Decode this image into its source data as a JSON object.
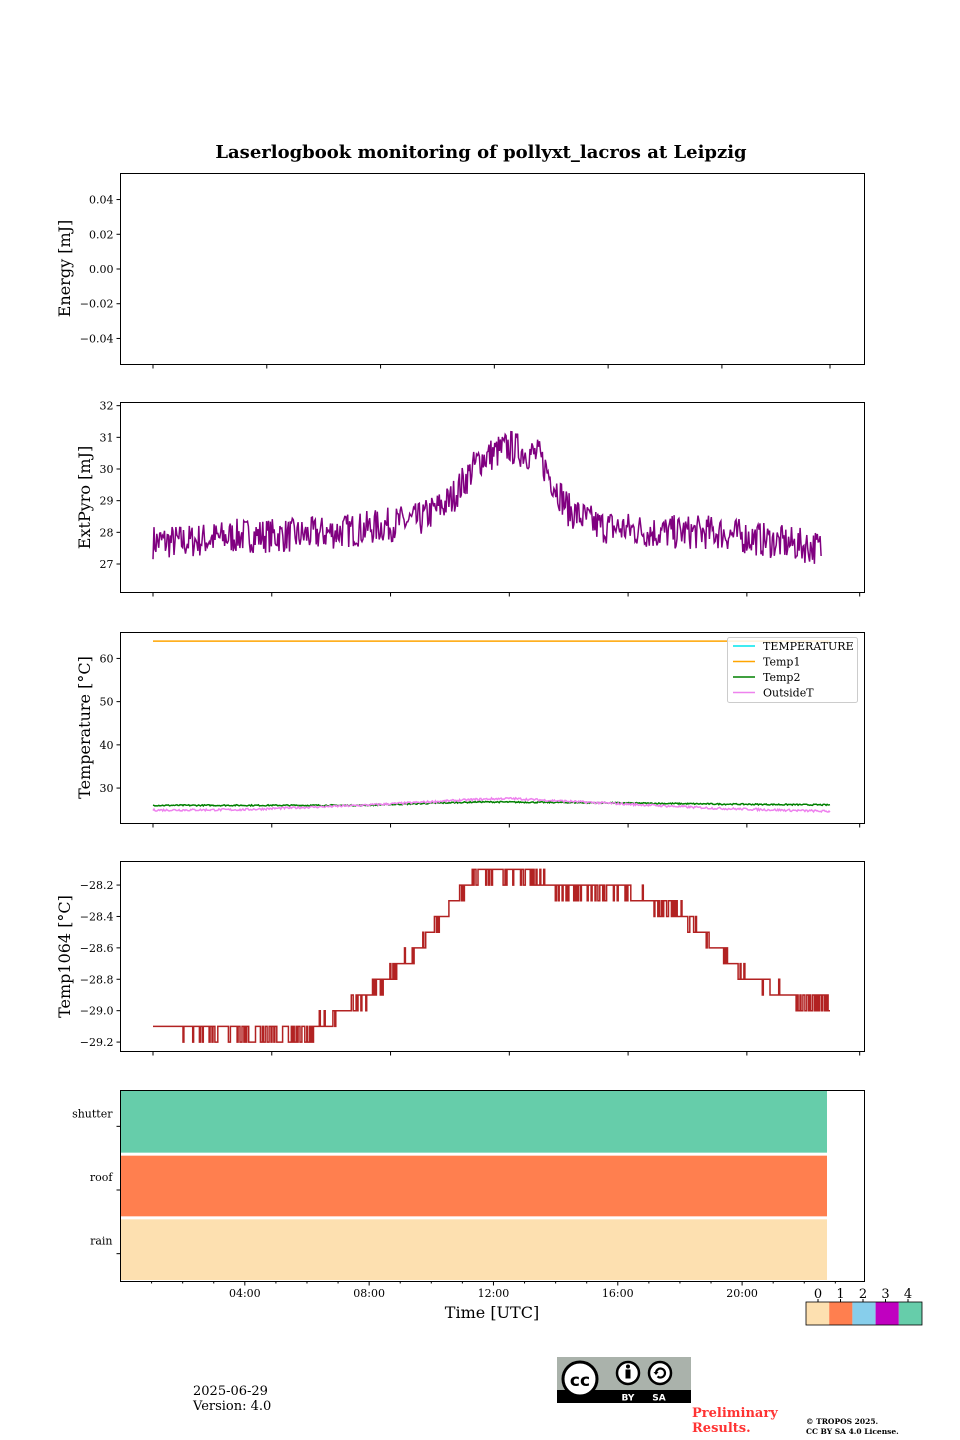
{
  "title": "Laserlogbook monitoring of pollyxt_lacros at Leipzig",
  "xlabel": "Time [UTC]",
  "x_ticks": [
    "04:00",
    "08:00",
    "12:00",
    "16:00",
    "20:00"
  ],
  "footer": {
    "date": "2025-06-29",
    "version": "Version: 4.0",
    "prelim_line1": "Preliminary",
    "prelim_line2": "Results.",
    "copyright_line1": "© TROPOS 2025.",
    "copyright_line2": "CC BY SA 4.0 License.",
    "license_badge_by": "BY",
    "license_badge_sa": "SA"
  },
  "chart_data": [
    {
      "type": "line",
      "ylabel": "Energy [mJ]",
      "ylim": [
        -0.055,
        0.055
      ],
      "yticks": [
        0.04,
        0.02,
        0.0,
        -0.02,
        -0.04
      ],
      "ytick_labels": [
        "0.04",
        "0.02",
        "0.00",
        "−0.02",
        "−0.04"
      ],
      "series": []
    },
    {
      "type": "line",
      "ylabel": "ExtPyro [mJ]",
      "ylim": [
        26.1,
        32.1
      ],
      "yticks": [
        32,
        31,
        30,
        29,
        28,
        27
      ],
      "ytick_labels": [
        "32",
        "31",
        "30",
        "29",
        "28",
        "27"
      ],
      "x_range_hours": [
        0,
        24
      ],
      "series": [
        {
          "color": "#800080",
          "noise": 0.55,
          "x": [
            1,
            2,
            4,
            6,
            8,
            10,
            11,
            12,
            13,
            14,
            15,
            16,
            18,
            20,
            22,
            23.5
          ],
          "y": [
            27.7,
            27.7,
            27.9,
            27.9,
            28.1,
            28.4,
            29.0,
            30.3,
            30.7,
            30.4,
            28.7,
            28.2,
            28.0,
            28.0,
            27.7,
            27.5
          ]
        }
      ]
    },
    {
      "type": "line",
      "ylabel": "Temperature [°C]",
      "ylim": [
        21.8,
        66
      ],
      "yticks": [
        60,
        50,
        40,
        30
      ],
      "ytick_labels": [
        "60",
        "50",
        "40",
        "30"
      ],
      "legend": "top-right",
      "x_range_hours": [
        0,
        24
      ],
      "series": [
        {
          "name": "TEMPERATURE",
          "color": "#00e5ee",
          "x": [],
          "y": []
        },
        {
          "name": "Temp1",
          "color": "#ffa500",
          "x": [
            1,
            23.8
          ],
          "y": [
            64,
            64
          ]
        },
        {
          "name": "Temp2",
          "color": "#008000",
          "noise": 0.15,
          "x": [
            1,
            4,
            8,
            12,
            16,
            20,
            23.8
          ],
          "y": [
            26.0,
            26.0,
            26.0,
            26.8,
            26.6,
            26.3,
            26.1
          ]
        },
        {
          "name": "OutsideT",
          "color": "#ee82ee",
          "noise": 0.25,
          "x": [
            1,
            4,
            8,
            12,
            13,
            16,
            20,
            23.8
          ],
          "y": [
            24.9,
            25.0,
            26.0,
            27.4,
            27.6,
            26.6,
            25.3,
            24.6
          ]
        }
      ]
    },
    {
      "type": "line",
      "ylabel": "Temp1064 [°C]",
      "ylim": [
        -29.26,
        -28.05
      ],
      "yticks": [
        -28.2,
        -28.4,
        -28.6,
        -28.8,
        -29.0,
        -29.2
      ],
      "ytick_labels": [
        "−28.2",
        "−28.4",
        "−28.6",
        "−28.8",
        "−29.0",
        "−29.2"
      ],
      "x_range_hours": [
        0,
        24
      ],
      "series": [
        {
          "color": "#b22222",
          "step": 0.1,
          "x": [
            1,
            2.6,
            4.8,
            6.1,
            8.3,
            10.0,
            11.0,
            11.9,
            13.4,
            14.6,
            16.8,
            18.8,
            20.7,
            22.8,
            23.8
          ],
          "y": [
            -29.1,
            -29.12,
            -29.15,
            -29.15,
            -28.9,
            -28.6,
            -28.35,
            -28.12,
            -28.12,
            -28.22,
            -28.24,
            -28.38,
            -28.75,
            -28.95,
            -28.95
          ]
        }
      ]
    },
    {
      "type": "heatmap",
      "rows": [
        "shutter",
        "roof",
        "rain"
      ],
      "row_values": [
        4,
        1,
        0
      ],
      "x_range_hours": [
        0,
        23.75
      ],
      "colorbar_ticks": [
        "0",
        "1",
        "2",
        "3",
        "4"
      ],
      "colors": [
        "#fde0b0",
        "#ff7f4f",
        "#87ceeb",
        "#c000c0",
        "#66cdaa"
      ]
    }
  ]
}
